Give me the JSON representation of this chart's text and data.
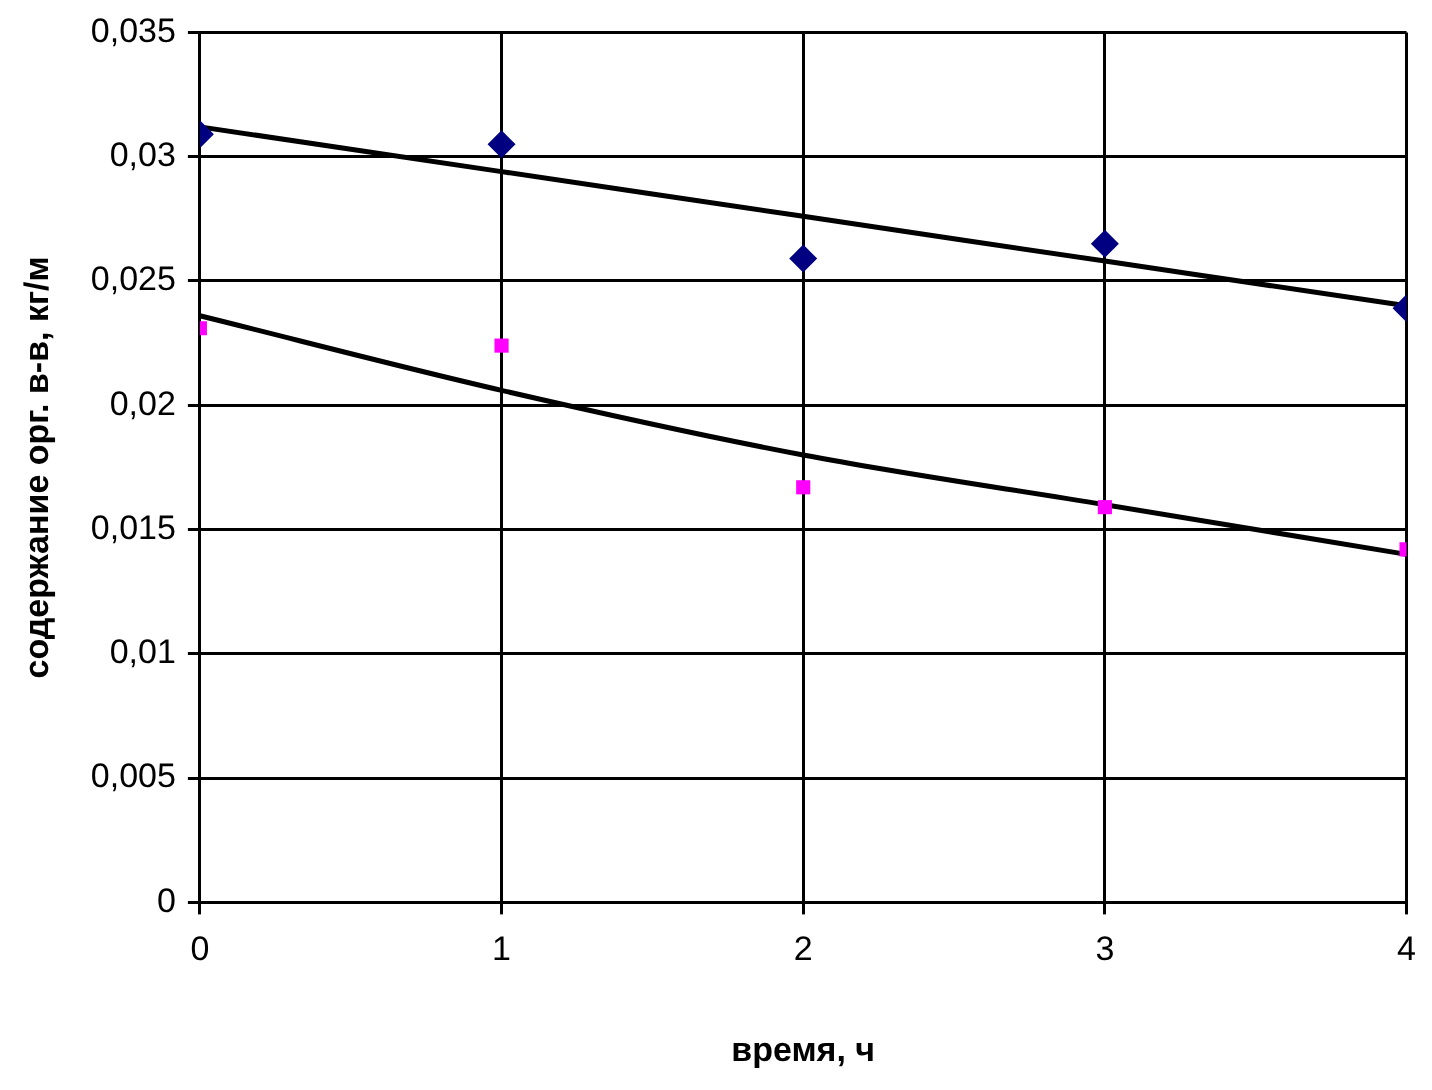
{
  "chart_data": {
    "type": "scatter",
    "xlabel": "время, ч",
    "ylabel": "содержание орг. в-в, кг/м",
    "x": [
      0,
      1,
      2,
      3,
      4
    ],
    "xlim": [
      0,
      4
    ],
    "xticks": [
      0,
      1,
      2,
      3,
      4
    ],
    "ylim": [
      0,
      0.035
    ],
    "yticks": [
      {
        "value": 0,
        "label": "0"
      },
      {
        "value": 0.005,
        "label": "0,005"
      },
      {
        "value": 0.01,
        "label": "0,01"
      },
      {
        "value": 0.015,
        "label": "0,015"
      },
      {
        "value": 0.02,
        "label": "0,02"
      },
      {
        "value": 0.025,
        "label": "0,025"
      },
      {
        "value": 0.03,
        "label": "0,03"
      },
      {
        "value": 0.035,
        "label": "0,035"
      }
    ],
    "grid": true,
    "legend": false,
    "series": [
      {
        "type": "scatter",
        "marker": "diamond",
        "color": "#000080",
        "values": [
          0.0309,
          0.0305,
          0.0259,
          0.0265,
          0.0239
        ]
      },
      {
        "type": "scatter",
        "marker": "square",
        "color": "#ff00ff",
        "values": [
          0.0231,
          0.0224,
          0.0167,
          0.0159,
          0.0142
        ]
      },
      {
        "type": "line",
        "marker": "none",
        "color": "#000000",
        "values": [
          0.0312,
          0.0294,
          0.0276,
          0.0258,
          0.024
        ]
      },
      {
        "type": "line",
        "marker": "none",
        "color": "#000000",
        "values": [
          0.0236,
          0.0206,
          0.018,
          0.016,
          0.014
        ]
      }
    ]
  }
}
